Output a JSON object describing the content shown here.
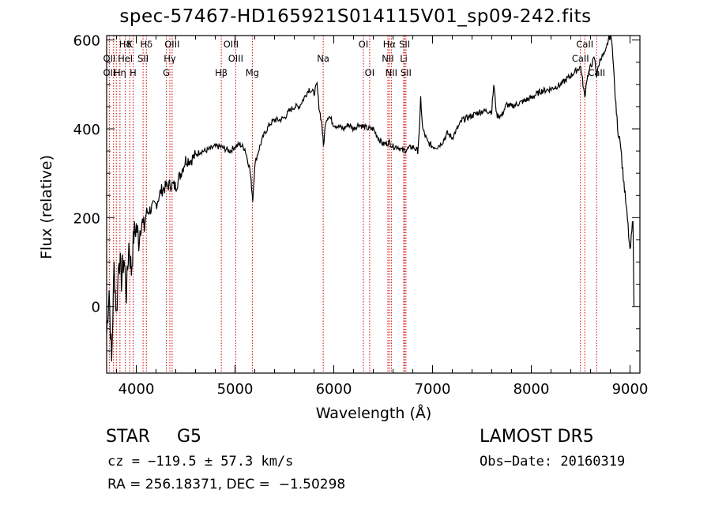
{
  "chart_data": {
    "type": "line",
    "title": "spec-57467-HD165921S014115V01_sp09-242.fits",
    "xlabel": "Wavelength (Å)",
    "ylabel": "Flux (relative)",
    "xlim": [
      3700,
      9100
    ],
    "ylim": [
      -150,
      610
    ],
    "xticks": [
      4000,
      5000,
      6000,
      7000,
      8000,
      9000
    ],
    "yticks": [
      0,
      200,
      400,
      600
    ],
    "grid": false,
    "series": [
      {
        "color": "#000000",
        "x": [
          3700,
          3725,
          3750,
          3775,
          3800,
          3825,
          3850,
          3875,
          3900,
          3925,
          3950,
          3975,
          4000,
          4025,
          4050,
          4075,
          4100,
          4150,
          4200,
          4250,
          4300,
          4350,
          4400,
          4450,
          4500,
          4550,
          4600,
          4650,
          4700,
          4750,
          4800,
          4850,
          4900,
          4950,
          5000,
          5050,
          5100,
          5150,
          5180,
          5200,
          5250,
          5300,
          5350,
          5400,
          5450,
          5500,
          5550,
          5600,
          5650,
          5700,
          5750,
          5800,
          5830,
          5850,
          5880,
          5895,
          5920,
          5950,
          6000,
          6050,
          6100,
          6150,
          6200,
          6250,
          6300,
          6350,
          6400,
          6450,
          6500,
          6562,
          6600,
          6650,
          6700,
          6750,
          6800,
          6850,
          6870,
          6880,
          6900,
          6950,
          7000,
          7050,
          7100,
          7150,
          7200,
          7250,
          7300,
          7400,
          7500,
          7600,
          7620,
          7650,
          7700,
          7750,
          7800,
          7900,
          8000,
          8100,
          8200,
          8300,
          8400,
          8450,
          8500,
          8542,
          8560,
          8600,
          8640,
          8662,
          8700,
          8750,
          8780,
          8800,
          8820,
          8850,
          8880,
          8900,
          8920,
          8950,
          8980,
          9000,
          9030,
          9040
        ],
        "y": [
          -60,
          40,
          -130,
          90,
          -20,
          120,
          60,
          110,
          30,
          140,
          80,
          160,
          180,
          150,
          200,
          170,
          210,
          220,
          230,
          260,
          270,
          275,
          270,
          300,
          330,
          330,
          340,
          350,
          350,
          355,
          360,
          360,
          355,
          350,
          360,
          365,
          355,
          310,
          240,
          320,
          360,
          390,
          410,
          420,
          420,
          425,
          440,
          450,
          450,
          470,
          490,
          480,
          500,
          450,
          410,
          360,
          420,
          430,
          410,
          405,
          400,
          410,
          400,
          410,
          405,
          400,
          400,
          380,
          365,
          370,
          360,
          360,
          350,
          355,
          360,
          350,
          410,
          470,
          400,
          370,
          360,
          360,
          370,
          390,
          380,
          400,
          420,
          430,
          440,
          440,
          500,
          430,
          430,
          455,
          450,
          460,
          470,
          485,
          490,
          500,
          520,
          530,
          540,
          470,
          510,
          540,
          560,
          520,
          560,
          570,
          600,
          610,
          590,
          470,
          390,
          380,
          320,
          250,
          180,
          120,
          200,
          0
        ]
      }
    ],
    "spectral_lines": {
      "row1": [
        {
          "label": "Hδ",
          "x": 3889
        },
        {
          "label": "K",
          "x": 3934
        },
        {
          "label": "Hδ",
          "x": 4102
        },
        {
          "label": "OIII",
          "x": 4363
        },
        {
          "label": "OIII",
          "x": 4959
        },
        {
          "label": "OI",
          "x": 6300
        },
        {
          "label": "Hα",
          "x": 6563
        },
        {
          "label": "SII",
          "x": 6717
        },
        {
          "label": "CaII",
          "x": 8542
        }
      ],
      "row2": [
        {
          "label": "OII",
          "x": 3727
        },
        {
          "label": "HeI",
          "x": 3889
        },
        {
          "label": "SII",
          "x": 4069
        },
        {
          "label": "Hγ",
          "x": 4340
        },
        {
          "label": "OIII",
          "x": 5007
        },
        {
          "label": "Na",
          "x": 5893
        },
        {
          "label": "NII",
          "x": 6548
        },
        {
          "label": "Li",
          "x": 6708
        },
        {
          "label": "CaII",
          "x": 8498
        }
      ],
      "row3": [
        {
          "label": "OII",
          "x": 3727
        },
        {
          "label": "Hη",
          "x": 3835
        },
        {
          "label": "H",
          "x": 3968
        },
        {
          "label": "G",
          "x": 4305
        },
        {
          "label": "Hβ",
          "x": 4861
        },
        {
          "label": "Mg",
          "x": 5175
        },
        {
          "label": "OI",
          "x": 6363
        },
        {
          "label": "NII",
          "x": 6583
        },
        {
          "label": "SII",
          "x": 6731
        },
        {
          "label": "CaII",
          "x": 8662
        }
      ],
      "line_positions": [
        3727,
        3770,
        3798,
        3835,
        3889,
        3934,
        3968,
        4069,
        4102,
        4305,
        4340,
        4363,
        4861,
        5007,
        5175,
        5893,
        6300,
        6363,
        6548,
        6563,
        6583,
        6708,
        6717,
        6731,
        8498,
        8542,
        8662
      ]
    }
  },
  "info": {
    "object_class": "STAR",
    "subclass": "G5",
    "survey": "LAMOST DR5",
    "cz": "cz = −119.5 ± 57.3 km/s",
    "obs_date": "Obs−Date: 20160319",
    "coords": "RA = 256.18371, DEC =  −1.50298"
  },
  "colors": {
    "axis": "#000000",
    "spectrum": "#000000",
    "lines": "#cc0000",
    "background": "#ffffff"
  }
}
